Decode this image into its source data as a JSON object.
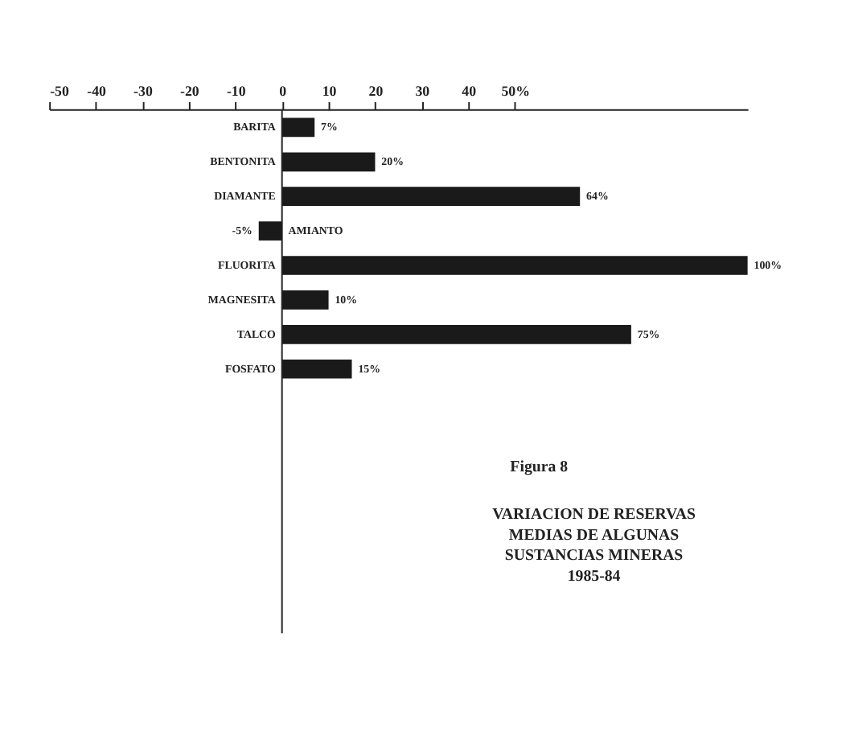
{
  "chart_data": {
    "type": "bar",
    "orientation": "horizontal",
    "title": "VARIACION DE RESERVAS\nMEDIAS DE ALGUNAS\nSUSTANCIAS MINERAS\n1985-84",
    "annotations": [
      "Figura 8"
    ],
    "categories": [
      "BARITA",
      "BENTONITA",
      "DIAMANTE",
      "AMIANTO",
      "FLUORITA",
      "MAGNESITA",
      "TALCO",
      "FOSFATO"
    ],
    "values": [
      7,
      20,
      64,
      -5,
      100,
      10,
      75,
      15
    ],
    "value_labels": [
      "7%",
      "20%",
      "64%",
      "-5%",
      "100%",
      "10%",
      "75%",
      "15%"
    ],
    "color": "#1a1a1a",
    "xlim": [
      -50,
      100
    ],
    "xticks": [
      -50,
      -40,
      -30,
      -20,
      -10,
      0,
      10,
      20,
      30,
      40,
      {
        "value": 50,
        "label": "50%"
      }
    ],
    "grid": false
  }
}
